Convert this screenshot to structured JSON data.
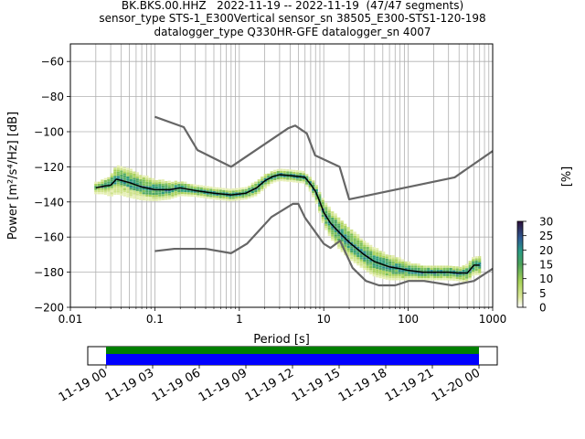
{
  "title": {
    "line1": "BK.BKS.00.HHZ   2022-11-19 -- 2022-11-19  (47/47 segments)",
    "line2": "sensor_type STS-1_E300Vertical sensor_sn 38505_E300-STS1-120-198",
    "line3": "datalogger_type Q330HR-GFE datalogger_sn 4007"
  },
  "chart_data": [
    {
      "type": "heatmap",
      "xlabel": "Period [s]",
      "ylabel": "Power [m²/s⁴/Hz] [dB]",
      "xscale": "log",
      "xlim": [
        0.01,
        1000
      ],
      "ylim": [
        -200,
        -50
      ],
      "x_ticks": [
        {
          "value": 0.01,
          "label": "0.01"
        },
        {
          "value": 0.1,
          "label": "0.1"
        },
        {
          "value": 1,
          "label": "1"
        },
        {
          "value": 10,
          "label": "10"
        },
        {
          "value": 100,
          "label": "100"
        },
        {
          "value": 1000,
          "label": "1000"
        }
      ],
      "y_ticks": [
        {
          "value": -60,
          "label": "−60"
        },
        {
          "value": -80,
          "label": "−80"
        },
        {
          "value": -100,
          "label": "−100"
        },
        {
          "value": -120,
          "label": "−120"
        },
        {
          "value": -140,
          "label": "−140"
        },
        {
          "value": -160,
          "label": "−160"
        },
        {
          "value": -180,
          "label": "−180"
        },
        {
          "value": -200,
          "label": "−200"
        }
      ],
      "grid": true,
      "colorbar": {
        "label": "[%]",
        "range": [
          0,
          30
        ],
        "ticks": [
          {
            "value": 30,
            "label": "30"
          },
          {
            "value": 25,
            "label": "25"
          },
          {
            "value": 20,
            "label": "20"
          },
          {
            "value": 15,
            "label": "15"
          },
          {
            "value": 10,
            "label": "10"
          },
          {
            "value": 5,
            "label": "5"
          },
          {
            "value": 0,
            "label": "0"
          }
        ]
      },
      "series": [
        {
          "role": "noise_model_high",
          "color": "#666666",
          "x": [
            0.1,
            0.22,
            0.32,
            0.8,
            3.8,
            4.6,
            6.3,
            7.9,
            15.4,
            20,
            354.8,
            1000
          ],
          "y": [
            -91.5,
            -97.4,
            -110.5,
            -120,
            -98,
            -96.5,
            -101,
            -113.5,
            -120,
            -138.5,
            -126,
            -111
          ]
        },
        {
          "role": "noise_model_low",
          "color": "#666666",
          "x": [
            0.1,
            0.17,
            0.4,
            0.8,
            1.24,
            2.4,
            4.3,
            5,
            6,
            10,
            12,
            15.6,
            21.9,
            31.6,
            45,
            70,
            101,
            154,
            328,
            600,
            1000
          ],
          "y": [
            -168,
            -166.7,
            -166.7,
            -169.2,
            -163.7,
            -148.6,
            -141.1,
            -141.1,
            -149,
            -163.8,
            -166.2,
            -162.1,
            -177.5,
            -185,
            -187.5,
            -187.5,
            -185,
            -185,
            -187.5,
            -185,
            -178
          ]
        },
        {
          "role": "mode",
          "color": "#000000",
          "x": [
            0.02,
            0.025,
            0.03,
            0.035,
            0.05,
            0.07,
            0.1,
            0.15,
            0.2,
            0.3,
            0.5,
            0.8,
            1.2,
            1.6,
            2,
            2.5,
            3,
            4,
            5,
            6,
            7,
            8,
            9,
            10,
            12,
            15,
            20,
            30,
            40,
            60,
            80,
            100,
            150,
            200,
            300,
            400,
            500,
            600,
            700
          ],
          "y": [
            -132,
            -131,
            -130.5,
            -127,
            -129,
            -131.5,
            -133,
            -133,
            -132,
            -133.5,
            -135,
            -136,
            -135,
            -132,
            -128,
            -125.5,
            -124.5,
            -125,
            -125.5,
            -126,
            -130,
            -134,
            -140,
            -146,
            -152,
            -157,
            -163,
            -170,
            -174,
            -177,
            -178,
            -179,
            -180,
            -180,
            -180,
            -180.5,
            -180.5,
            -176,
            -176
          ]
        }
      ],
      "psd_density": {
        "x": [
          0.02,
          0.025,
          0.03,
          0.035,
          0.05,
          0.07,
          0.1,
          0.15,
          0.2,
          0.3,
          0.5,
          0.8,
          1.2,
          1.6,
          2,
          2.5,
          3,
          4,
          5,
          6,
          7,
          8,
          9,
          10,
          12,
          15,
          20,
          30,
          40,
          60,
          80,
          100,
          150,
          200,
          300,
          400,
          500,
          600,
          700
        ],
        "spread_db": [
          3,
          4,
          6,
          8,
          8,
          7,
          6,
          5,
          4,
          3,
          3,
          3,
          3,
          4,
          4,
          3,
          3,
          3,
          3,
          3,
          4,
          5,
          6,
          7,
          8,
          9,
          9,
          8,
          8,
          7,
          6,
          5,
          4,
          4,
          4,
          4,
          5,
          5,
          5
        ]
      }
    },
    {
      "type": "bar",
      "role": "data_coverage",
      "x_ticks": [
        "11-19 00",
        "11-19 03",
        "11-19 06",
        "11-19 09",
        "11-19 12",
        "11-19 15",
        "11-19 18",
        "11-19 21",
        "11-20 00"
      ],
      "tracks": [
        {
          "name": "",
          "color": "#008000",
          "start_hour": 0,
          "end_hour": 24
        },
        {
          "name": "",
          "color": "#0000ff",
          "start_hour": 0,
          "end_hour": 24
        }
      ]
    }
  ]
}
